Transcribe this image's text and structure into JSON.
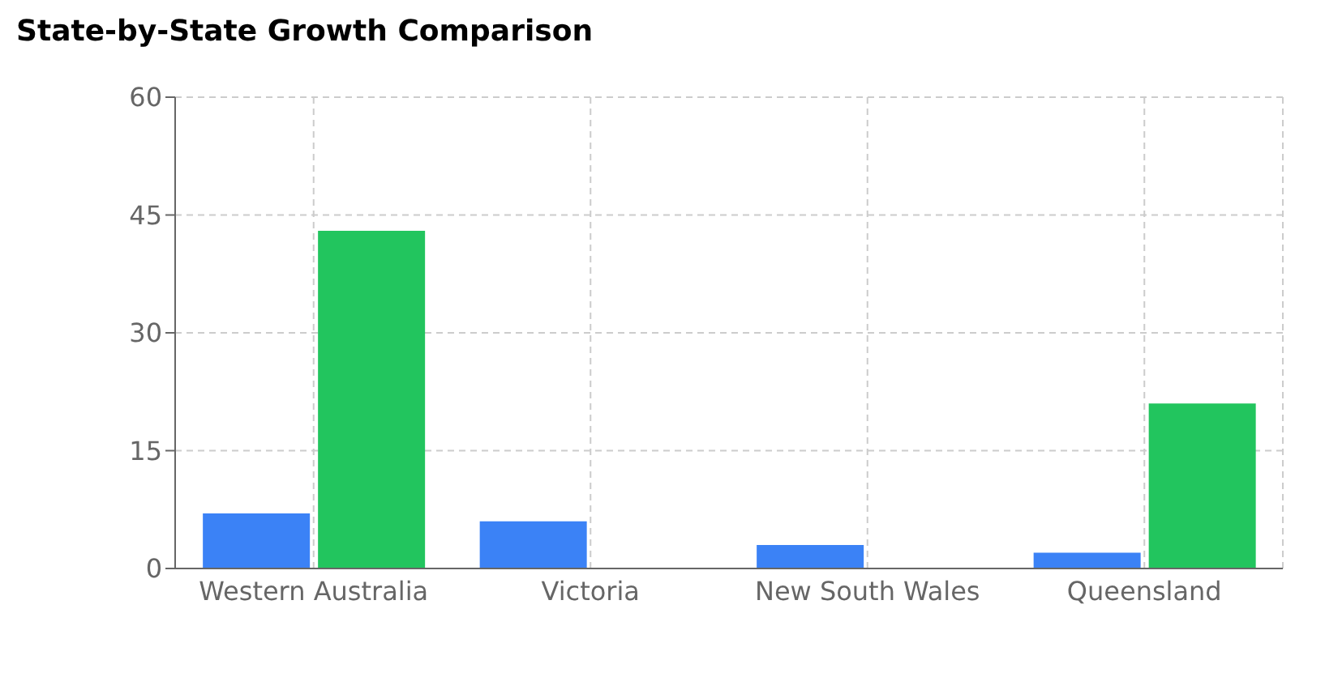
{
  "chart_data": {
    "type": "bar",
    "title": "State-by-State Growth Comparison",
    "categories": [
      "Western Australia",
      "Victoria",
      "New South Wales",
      "Queensland"
    ],
    "series": [
      {
        "color": "#3b82f6",
        "values": [
          7,
          6,
          3,
          2
        ]
      },
      {
        "color": "#22c55e",
        "values": [
          43,
          0,
          0,
          21
        ]
      }
    ],
    "ylim": [
      0,
      60
    ],
    "yticks": [
      0,
      15,
      30,
      45,
      60
    ],
    "grid": true
  }
}
